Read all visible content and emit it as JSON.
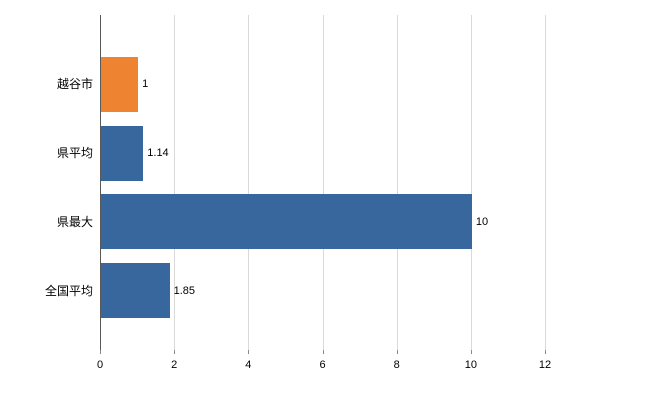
{
  "chart_data": {
    "type": "bar",
    "orientation": "horizontal",
    "title": "",
    "xlabel": "",
    "ylabel": "",
    "categories": [
      "越谷市",
      "県平均",
      "県最大",
      "全国平均"
    ],
    "values": [
      1,
      1.14,
      10,
      1.85
    ],
    "value_labels": [
      "1",
      "1.14",
      "10",
      "1.85"
    ],
    "bar_colors": [
      "#ee8431",
      "#38679e",
      "#38679e",
      "#38679e"
    ],
    "xlim": [
      0,
      12
    ],
    "xticks": [
      0,
      2,
      4,
      6,
      8,
      10,
      12
    ],
    "xtick_labels": [
      "0",
      "2",
      "4",
      "6",
      "8",
      "10",
      "12"
    ],
    "grid": true,
    "legend": false,
    "colors": {
      "gridline": "#d9d9d9",
      "axis": "#595959",
      "tick": "#8c8c8c",
      "background": "#ffffff",
      "orange_series": "#ee8431",
      "blue_series": "#38679e"
    }
  }
}
